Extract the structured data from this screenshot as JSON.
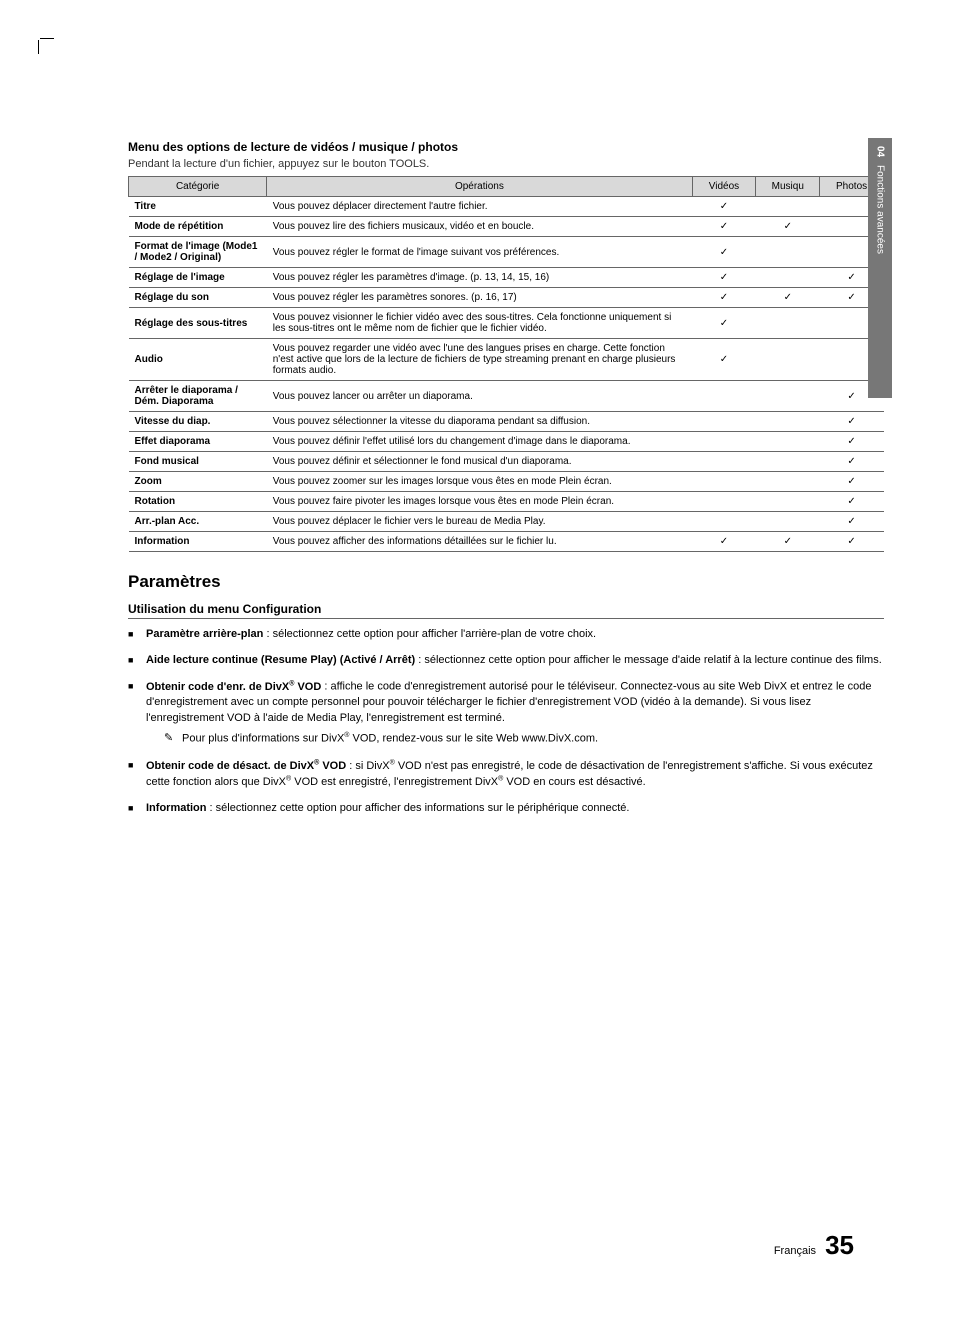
{
  "side_tab": {
    "chapter": "04",
    "label": "Fonctions avancées"
  },
  "section_title": "Menu des options de lecture de vidéos / musique / photos",
  "subtitle": "Pendant la lecture d'un fichier, appuyez sur le bouton TOOLS.",
  "columns": {
    "cat": "Catégorie",
    "op": "Opérations",
    "v": "Vidéos",
    "m": "Musiqu",
    "p": "Photos"
  },
  "checkmark": "✓",
  "rows": [
    {
      "cat": "Titre",
      "op": "Vous pouvez déplacer directement l'autre fichier.",
      "v": true,
      "m": false,
      "p": false
    },
    {
      "cat": "Mode de répétition",
      "op": "Vous pouvez lire des fichiers musicaux, vidéo et en boucle.",
      "v": true,
      "m": true,
      "p": false
    },
    {
      "cat": "Format de l'image (Mode1 / Mode2 / Original)",
      "op": "Vous pouvez régler le format de l'image suivant vos préférences.",
      "v": true,
      "m": false,
      "p": false
    },
    {
      "cat": "Réglage de l'image",
      "op": "Vous pouvez régler les paramètres d'image. (p. 13, 14, 15, 16)",
      "v": true,
      "m": false,
      "p": true
    },
    {
      "cat": "Réglage du son",
      "op": "Vous pouvez régler les paramètres sonores. (p. 16, 17)",
      "v": true,
      "m": true,
      "p": true
    },
    {
      "cat": "Réglage des sous-titres",
      "op": "Vous pouvez visionner le fichier vidéo avec des sous-titres. Cela fonctionne uniquement si les sous-titres ont le même nom de fichier que le fichier vidéo.",
      "v": true,
      "m": false,
      "p": false
    },
    {
      "cat": "Audio",
      "op": "Vous pouvez regarder une vidéo avec l'une des langues prises en charge. Cette fonction n'est active que lors de la lecture de fichiers de type streaming prenant en charge plusieurs formats audio.",
      "v": true,
      "m": false,
      "p": false
    },
    {
      "cat": "Arrêter le diaporama / Dém. Diaporama",
      "op": "Vous pouvez lancer ou arrêter un diaporama.",
      "v": false,
      "m": false,
      "p": true
    },
    {
      "cat": "Vitesse du diap.",
      "op": "Vous pouvez sélectionner la vitesse du diaporama pendant sa diffusion.",
      "v": false,
      "m": false,
      "p": true
    },
    {
      "cat": "Effet diaporama",
      "op": "Vous pouvez définir l'effet utilisé lors du changement d'image dans le diaporama.",
      "v": false,
      "m": false,
      "p": true
    },
    {
      "cat": "Fond musical",
      "op": "Vous pouvez définir et sélectionner le fond musical d'un diaporama.",
      "v": false,
      "m": false,
      "p": true
    },
    {
      "cat": "Zoom",
      "op": "Vous pouvez zoomer sur les images lorsque vous êtes en mode Plein écran.",
      "v": false,
      "m": false,
      "p": true
    },
    {
      "cat": "Rotation",
      "op": "Vous pouvez faire pivoter les images lorsque vous êtes en mode Plein écran.",
      "v": false,
      "m": false,
      "p": true
    },
    {
      "cat": "Arr.-plan Acc.",
      "op": "Vous pouvez déplacer le fichier vers le bureau de Media Play.",
      "v": false,
      "m": false,
      "p": true
    },
    {
      "cat": "Information",
      "op": "Vous pouvez afficher des informations détaillées sur le fichier lu.",
      "v": true,
      "m": true,
      "p": true
    }
  ],
  "params_heading": "Paramètres",
  "config_title": "Utilisation du menu Configuration",
  "config_items": [
    {
      "bold": "Paramètre arrière-plan",
      "rest": " : sélectionnez cette option pour afficher l'arrière-plan de votre choix."
    },
    {
      "bold": "Aide lecture continue (Resume Play) (Activé / Arrêt)",
      "rest": " : sélectionnez cette option pour afficher le message d'aide relatif à la lecture continue des films."
    },
    {
      "bold": "Obtenir code d'enr. de DivX® VOD",
      "rest": " : affiche le code d'enregistrement autorisé pour le téléviseur. Connectez-vous au site Web DivX et entrez le code d'enregistrement avec un compte personnel pour pouvoir télécharger le fichier d'enregistrement VOD (vidéo à la demande). Si vous lisez l'enregistrement VOD à l'aide de Media Play, l'enregistrement est terminé.",
      "note": "Pour plus d'informations sur DivX® VOD, rendez-vous sur le site Web www.DivX.com."
    },
    {
      "bold": "Obtenir code de désact. de DivX® VOD",
      "rest": " : si DivX® VOD n'est pas enregistré, le code de désactivation de l'enregistrement s'affiche. Si vous exécutez cette fonction alors que DivX® VOD est enregistré, l'enregistrement DivX® VOD en cours est désactivé."
    },
    {
      "bold": "Information",
      "rest": " : sélectionnez cette option pour afficher des informations sur le périphérique connecté."
    }
  ],
  "footer": {
    "lang": "Français",
    "page": "35"
  },
  "colors": {
    "header_bg": "#d9d9d9",
    "border": "#666666",
    "sidetab_bg": "#777777",
    "sidetab_text": "#ffffff"
  }
}
